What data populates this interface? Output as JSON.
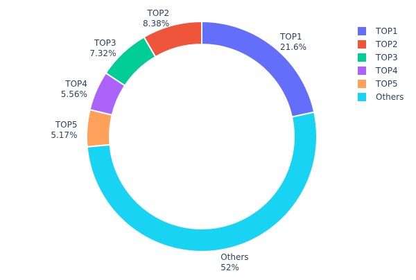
{
  "chart_data": {
    "type": "pie",
    "hole": true,
    "labels": [
      "TOP1",
      "TOP2",
      "TOP3",
      "TOP4",
      "TOP5",
      "Others"
    ],
    "values": [
      21.6,
      8.38,
      7.32,
      5.56,
      5.17,
      52
    ],
    "value_labels": [
      "21.6%",
      "8.38%",
      "7.32%",
      "5.56%",
      "5.17%",
      "52%"
    ],
    "colors": [
      "#636efa",
      "#ef553b",
      "#00cc96",
      "#ab63fa",
      "#ffa15a",
      "#19d3f3"
    ],
    "legend_position": "top-right"
  }
}
